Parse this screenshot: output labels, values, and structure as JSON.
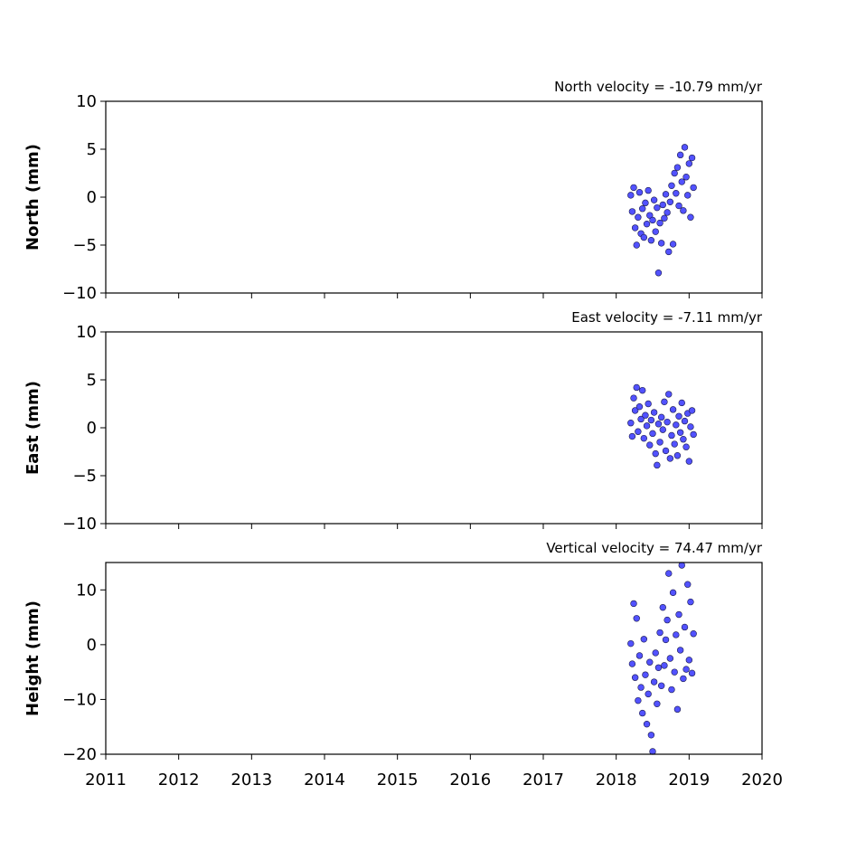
{
  "chart_data": [
    {
      "type": "scatter",
      "title": "North velocity = -10.79 mm/yr",
      "ylabel": "North (mm)",
      "color": "#5252ff",
      "edgecolor": "#1a1a4d",
      "show_xtick_labels": false,
      "xlim": [
        2011,
        2020
      ],
      "xticks": [
        2011,
        2012,
        2013,
        2014,
        2015,
        2016,
        2017,
        2018,
        2019,
        2020
      ],
      "ylim": [
        -10,
        10
      ],
      "yticks": [
        {
          "value": -10,
          "label": "−10"
        },
        {
          "value": -5,
          "label": "−5"
        },
        0,
        5,
        10
      ],
      "x": [
        2018.2,
        2018.22,
        2018.24,
        2018.26,
        2018.28,
        2018.3,
        2018.32,
        2018.34,
        2018.36,
        2018.38,
        2018.4,
        2018.42,
        2018.44,
        2018.46,
        2018.48,
        2018.5,
        2018.52,
        2018.54,
        2018.56,
        2018.58,
        2018.6,
        2018.62,
        2018.64,
        2018.66,
        2018.68,
        2018.7,
        2018.72,
        2018.74,
        2018.76,
        2018.78,
        2018.8,
        2018.82,
        2018.84,
        2018.86,
        2018.88,
        2018.9,
        2018.92,
        2018.94,
        2018.96,
        2018.98,
        2019.0,
        2019.02,
        2019.04,
        2019.06
      ],
      "values": [
        0.2,
        -1.5,
        1.0,
        -3.2,
        -5.0,
        -2.1,
        0.5,
        -3.8,
        -1.2,
        -4.2,
        -0.6,
        -2.8,
        0.7,
        -1.9,
        -4.5,
        -2.4,
        -0.3,
        -3.6,
        -1.1,
        -7.9,
        -2.7,
        -4.8,
        -0.8,
        -2.2,
        0.3,
        -1.6,
        -5.7,
        -0.5,
        1.2,
        -4.9,
        2.5,
        0.4,
        3.1,
        -0.9,
        4.4,
        1.6,
        -1.4,
        5.2,
        2.1,
        0.2,
        3.5,
        -2.1,
        4.1,
        1.0
      ]
    },
    {
      "type": "scatter",
      "title": "East velocity = -7.11 mm/yr",
      "ylabel": "East (mm)",
      "color": "#5252ff",
      "edgecolor": "#1a1a4d",
      "show_xtick_labels": false,
      "xlim": [
        2011,
        2020
      ],
      "xticks": [
        2011,
        2012,
        2013,
        2014,
        2015,
        2016,
        2017,
        2018,
        2019,
        2020
      ],
      "ylim": [
        -10,
        10
      ],
      "yticks": [
        {
          "value": -10,
          "label": "−10"
        },
        {
          "value": -5,
          "label": "−5"
        },
        0,
        5,
        10
      ],
      "x": [
        2018.2,
        2018.22,
        2018.24,
        2018.26,
        2018.28,
        2018.3,
        2018.32,
        2018.34,
        2018.36,
        2018.38,
        2018.4,
        2018.42,
        2018.44,
        2018.46,
        2018.48,
        2018.5,
        2018.52,
        2018.54,
        2018.56,
        2018.58,
        2018.6,
        2018.62,
        2018.64,
        2018.66,
        2018.68,
        2018.7,
        2018.72,
        2018.74,
        2018.76,
        2018.78,
        2018.8,
        2018.82,
        2018.84,
        2018.86,
        2018.88,
        2018.9,
        2018.92,
        2018.94,
        2018.96,
        2018.98,
        2019.0,
        2019.02,
        2019.04,
        2019.06
      ],
      "values": [
        0.5,
        -0.9,
        3.1,
        1.8,
        4.2,
        -0.4,
        2.2,
        0.9,
        3.9,
        -1.1,
        1.3,
        0.2,
        2.5,
        -1.8,
        0.8,
        -0.6,
        1.6,
        -2.7,
        -3.9,
        0.4,
        -1.5,
        1.1,
        -0.2,
        2.7,
        -2.4,
        0.6,
        3.5,
        -3.2,
        -0.8,
        1.9,
        -1.7,
        0.3,
        -2.9,
        1.2,
        -0.5,
        2.6,
        -1.2,
        0.7,
        -2.0,
        1.5,
        -3.5,
        0.1,
        1.8,
        -0.7
      ]
    },
    {
      "type": "scatter",
      "title": "Vertical velocity = 74.47 mm/yr",
      "ylabel": "Height (mm)",
      "color": "#5252ff",
      "edgecolor": "#1a1a4d",
      "show_xtick_labels": true,
      "xlim": [
        2011,
        2020
      ],
      "xticks": [
        2011,
        2012,
        2013,
        2014,
        2015,
        2016,
        2017,
        2018,
        2019,
        2020
      ],
      "ylim": [
        -20,
        15
      ],
      "yticks": [
        {
          "value": -20,
          "label": "−20"
        },
        {
          "value": -10,
          "label": "−10"
        },
        0,
        10
      ],
      "x": [
        2018.2,
        2018.22,
        2018.24,
        2018.26,
        2018.28,
        2018.3,
        2018.32,
        2018.34,
        2018.36,
        2018.38,
        2018.4,
        2018.42,
        2018.44,
        2018.46,
        2018.48,
        2018.5,
        2018.52,
        2018.54,
        2018.56,
        2018.58,
        2018.6,
        2018.62,
        2018.64,
        2018.66,
        2018.68,
        2018.7,
        2018.72,
        2018.74,
        2018.76,
        2018.78,
        2018.8,
        2018.82,
        2018.84,
        2018.86,
        2018.88,
        2018.9,
        2018.92,
        2018.94,
        2018.96,
        2018.98,
        2019.0,
        2019.02,
        2019.04,
        2019.06
      ],
      "values": [
        0.2,
        -3.5,
        7.5,
        -6.0,
        4.8,
        -10.2,
        -2.0,
        -7.8,
        -12.5,
        1.0,
        -5.5,
        -14.5,
        -9.0,
        -3.2,
        -16.5,
        -19.5,
        -6.8,
        -1.5,
        -10.8,
        -4.2,
        2.2,
        -7.5,
        6.8,
        -3.8,
        0.9,
        4.5,
        13.0,
        -2.5,
        -8.2,
        9.5,
        -5.0,
        1.8,
        -11.8,
        5.5,
        -1.0,
        14.5,
        -6.2,
        3.2,
        -4.5,
        11.0,
        -2.8,
        7.8,
        -5.2,
        2.0
      ]
    }
  ]
}
